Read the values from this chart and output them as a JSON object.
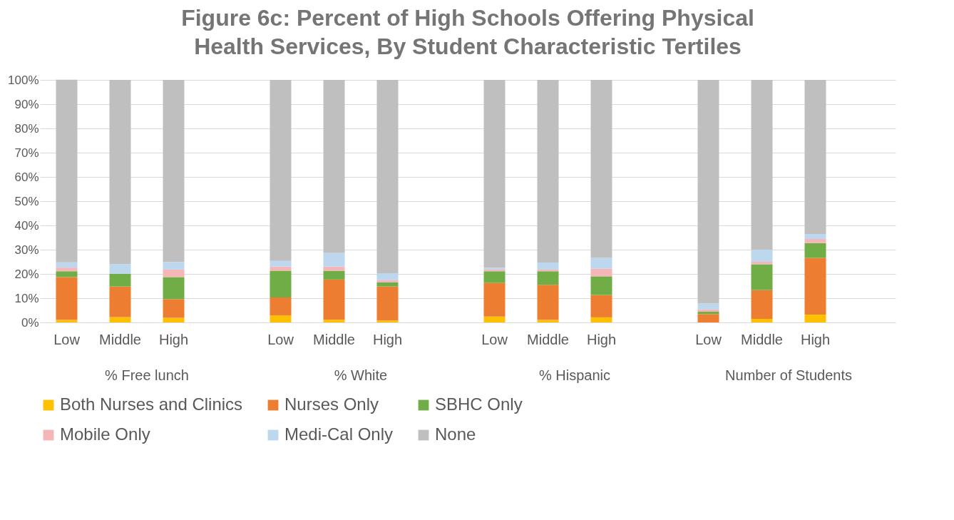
{
  "chart_data": {
    "type": "bar",
    "title": "Figure 6c: Percent of High Schools Offering Physical Health Services, By Student Characteristic Tertiles",
    "stacked": true,
    "categories": [
      "Low",
      "Middle",
      "High",
      null,
      "Low",
      "Middle",
      "High",
      null,
      "Low",
      "Middle",
      "High",
      null,
      "Low",
      "Middle",
      "High",
      null
    ],
    "series": [
      {
        "name": "Both Nurses and Clinics",
        "color": "#ffc000",
        "values": [
          1.0,
          2.2,
          1.9,
          null,
          2.9,
          1.1,
          0.8,
          null,
          2.4,
          1.0,
          2.1,
          null,
          0,
          1.5,
          3.2,
          null
        ]
      },
      {
        "name": "Nurses Only",
        "color": "#ed7d31",
        "values": [
          17.7,
          12.6,
          7.7,
          null,
          7.4,
          16.6,
          14.0,
          null,
          13.9,
          14.5,
          9.2,
          null,
          3.4,
          11.8,
          23.4,
          null
        ]
      },
      {
        "name": "SBHC Only",
        "color": "#70ad47",
        "values": [
          2.4,
          5.3,
          9.1,
          null,
          11.0,
          3.6,
          1.7,
          null,
          4.8,
          5.6,
          7.7,
          null,
          1.0,
          10.7,
          6.1,
          null
        ]
      },
      {
        "name": "Mobile Only",
        "color": "#f4b6b6",
        "values": [
          1.5,
          0,
          3.1,
          null,
          1.7,
          1.7,
          0.9,
          null,
          0.7,
          0.7,
          3.2,
          null,
          1.0,
          1.0,
          1.7,
          null
        ]
      },
      {
        "name": "Medi-Cal Only",
        "color": "#bdd7ee",
        "values": [
          2.2,
          4.0,
          3.1,
          null,
          2.4,
          5.7,
          2.9,
          null,
          0.7,
          2.9,
          4.4,
          null,
          2.4,
          5.0,
          2.1,
          null
        ]
      },
      {
        "name": "None",
        "color": "#bfbfbf",
        "values": [
          75.3,
          75.9,
          75.1,
          null,
          74.6,
          71.3,
          79.7,
          null,
          77.5,
          75.3,
          73.4,
          null,
          92.2,
          70.0,
          63.5,
          null
        ]
      }
    ],
    "ylim": [
      0,
      100
    ],
    "yticks": [
      {
        "value": 0,
        "label": "0%"
      },
      {
        "value": 10,
        "label": "10%"
      },
      {
        "value": 20,
        "label": "20%"
      },
      {
        "value": 30,
        "label": "30%"
      },
      {
        "value": 40,
        "label": "40%"
      },
      {
        "value": 50,
        "label": "50%"
      },
      {
        "value": 60,
        "label": "60%"
      },
      {
        "value": 70,
        "label": "70%"
      },
      {
        "value": 80,
        "label": "80%"
      },
      {
        "value": 90,
        "label": "90%"
      },
      {
        "value": 100,
        "label": "100%"
      }
    ],
    "annotations": [
      "% Free lunch",
      "% White",
      "% Hispanic",
      "Number of Students"
    ],
    "grid": "y",
    "legend": "bottom"
  }
}
